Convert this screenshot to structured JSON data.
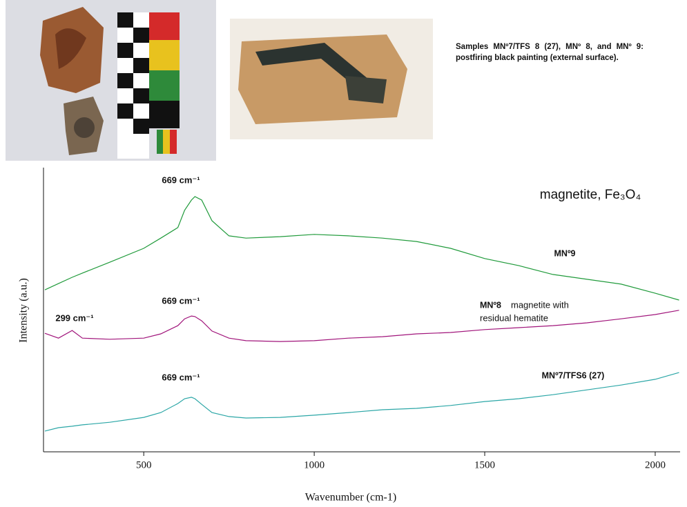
{
  "caption": "Samples MNº7/TFS 8 (27), MNº 8, and MNº 9: postfiring black painting (external surface).",
  "chart_data": {
    "type": "line",
    "title": "magnetite, Fe₃O₄",
    "x_label": "Wavenumber (cm-1)",
    "y_label": "Intensity (a.u.)",
    "x": [
      210,
      250,
      290,
      320,
      400,
      500,
      550,
      600,
      620,
      640,
      650,
      670,
      700,
      750,
      800,
      900,
      1000,
      1100,
      1200,
      1300,
      1400,
      1500,
      1600,
      1700,
      1800,
      1900,
      2000,
      2070
    ],
    "xlim": [
      206,
      2073
    ],
    "xticks": [
      500,
      1000,
      1500,
      2000
    ],
    "ylim": [
      0,
      100
    ],
    "series": [
      {
        "name": "MNº9",
        "color": "#1f9a3a",
        "values": [
          57.0,
          59.2,
          61.4,
          62.9,
          66.7,
          71.6,
          75.2,
          78.9,
          85.0,
          88.6,
          89.8,
          88.6,
          81.3,
          76.0,
          75.2,
          75.7,
          76.5,
          76.0,
          75.2,
          74.0,
          71.6,
          68.0,
          65.5,
          62.4,
          60.7,
          59.0,
          55.8,
          53.4
        ]
      },
      {
        "name": "MNº8",
        "color": "#a0137a",
        "values": [
          41.7,
          40.0,
          42.7,
          40.0,
          39.6,
          40.0,
          41.5,
          44.4,
          46.8,
          47.8,
          47.6,
          46.1,
          42.5,
          40.0,
          39.1,
          38.8,
          39.1,
          40.0,
          40.5,
          41.5,
          42.0,
          43.0,
          43.7,
          44.4,
          45.4,
          46.8,
          48.3,
          49.8
        ]
      },
      {
        "name": "MNº7/TFS6 (27)",
        "color": "#2aa6a6",
        "values": [
          7.3,
          8.5,
          9.0,
          9.5,
          10.4,
          12.1,
          13.8,
          17.0,
          18.7,
          19.2,
          18.7,
          16.7,
          13.8,
          12.4,
          11.9,
          12.1,
          12.9,
          13.8,
          14.8,
          15.3,
          16.3,
          17.7,
          18.7,
          20.1,
          21.8,
          23.5,
          25.5,
          27.9
        ]
      }
    ],
    "annotations": [
      "669 cm⁻¹",
      "669 cm⁻¹",
      "299 cm⁻¹",
      "669 cm⁻¹",
      "magnetite with",
      "residual hematite"
    ]
  }
}
